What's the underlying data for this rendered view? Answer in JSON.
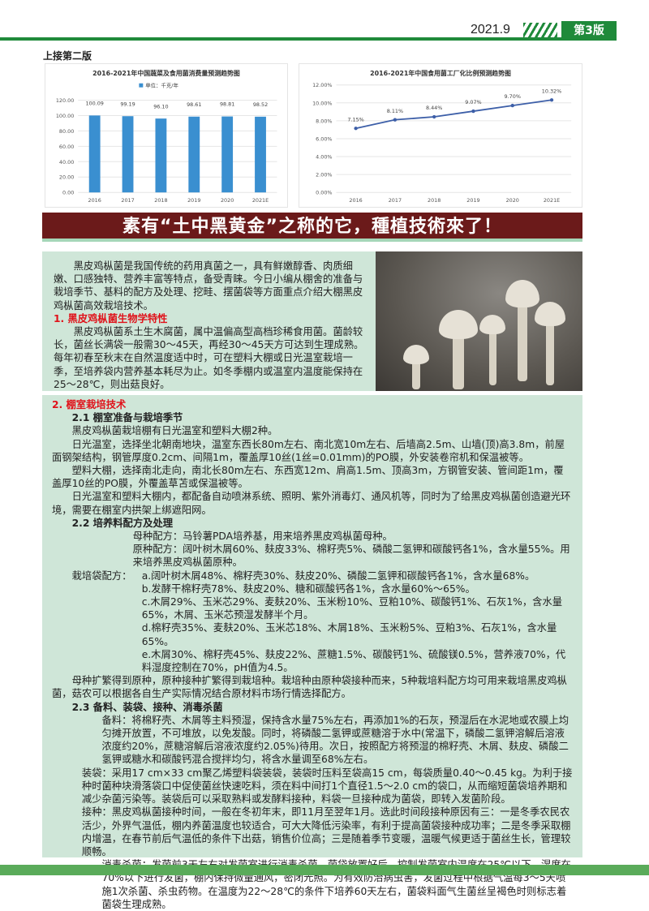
{
  "header": {
    "date": "2021.9",
    "edition": "第3版",
    "continued": "上接第二版"
  },
  "chart_data": [
    {
      "type": "bar",
      "title": "2016-2021年中国蔬菜及食用菌消费量预测趋势图",
      "legend": "单位：千克/年",
      "categories": [
        "2016",
        "2017",
        "2018",
        "2019",
        "2020",
        "2021E"
      ],
      "values": [
        100.09,
        99.19,
        96.1,
        98.61,
        98.81,
        98.52
      ],
      "labels": [
        "100.09",
        "99.19",
        "96.10",
        "98.61",
        "98.81",
        "98.52"
      ],
      "ylim": [
        0,
        120
      ],
      "yticks": [
        "0.00",
        "20.00",
        "40.00",
        "60.00",
        "80.00",
        "100.00",
        "120.00"
      ],
      "color": "#3a8fd0",
      "grid": true
    },
    {
      "type": "line",
      "title": "2016-2021年中国食用菌工厂化比例预测趋势图",
      "categories": [
        "2016",
        "2017",
        "2018",
        "2019",
        "2020",
        "2021E"
      ],
      "values": [
        7.15,
        8.11,
        8.44,
        9.07,
        9.7,
        10.32
      ],
      "labels": [
        "7.15%",
        "8.11%",
        "8.44%",
        "9.07%",
        "9.70%",
        "10.32%"
      ],
      "ylim": [
        0,
        12
      ],
      "yticks": [
        "0.00%",
        "2.00%",
        "4.00%",
        "6.00%",
        "8.00%",
        "10.00%",
        "12.00%"
      ],
      "color": "#3d5fa8",
      "grid": true
    }
  ],
  "banner": "素有“土中黑黄金”之称的它，種植技術來了！",
  "intro": {
    "p1": "黑皮鸡枞菌是我国传统的药用真菌之一，具有鲜嫩醇香、肉质细嫩、口感独特、营养丰富等特点，备受青睐。今日小编从棚舍的准备与栽培季节、基料的配方及处理、挖畦、摆菌袋等方面重点介绍大棚黑皮鸡枞菌高效栽培技术。",
    "h1": "1. 黑皮鸡枞菌生物学特性",
    "p2": "黑皮鸡枞菌系土生木腐菌，属中温偏高型高档珍稀食用菌。菌龄较长，菌丝长满袋一般需30～45天，再经30～45天方可达到生理成熟。每年初春至秋末在自然温度适中时，可在塑料大棚或日光温室栽培一季，至培养袋内营养基本耗尽为止。如冬季棚内或温室内温度能保持在25～28℃，则出菇良好。"
  },
  "main": {
    "h2": "2. 棚室栽培技术",
    "s21": "2.1 棚室准备与栽培季节",
    "p1": "黑皮鸡枞菌栽培棚有日光温室和塑料大棚2种。",
    "p2": "日光温室，选择坐北朝南地块，温室东西长80m左右、南北宽10m左右、后墙高2.5m、山墙(顶)高3.8m，前屋面钢架结构，钢管厚度0.2cm、间隔1m，覆盖厚10丝(1丝=0.01mm)的PO膜，外安装卷帘机和保温被等。",
    "p3": "塑料大棚，选择南北走向，南北长80m左右、东西宽12m、肩高1.5m、顶高3m，方钢管安装、管间距1m，覆盖厚10丝的PO膜，外覆盖草苫或保温被等。",
    "p4": "日光温室和塑料大棚内，都配备自动喷淋系统、照明、紫外消毒灯、通风机等，同时为了给黑皮鸡枞菌创造避光环境，需要在棚室内拱架上绑遮阳网。",
    "s22": "2.2 培养料配方及处理",
    "mother": "母种配方：马铃薯PDA培养基，用来培养黑皮鸡枞菌母种。",
    "origin": "原种配方：阔叶树木屑60%、麸皮33%、棉籽壳5%、磷酸二氢钾和碳酸钙各1%，含水量55%。用来培养黑皮鸡枞菌原种。",
    "bag_label": "栽培袋配方：",
    "bag": [
      "a.阔叶树木屑48%、棉籽壳30%、麸皮20%、磷酸二氢钾和碳酸钙各1%，含水量68%。",
      "b.发酵干棉籽壳78%、麸皮20%、糖和碳酸钙各1%，含水量60%～65%。",
      "c.木屑29%、玉米芯29%、麦麸20%、玉米粉10%、豆粕10%、碳酸钙1%、石灰1%，含水量65%，木屑、玉米芯预湿发酵半个月。",
      "d.棉籽壳35%、麦麸20%、玉米芯18%、木屑18%、玉米粉5%、豆粕3%、石灰1%，含水量65%。",
      "e.木屑30%、棉籽壳45%、麸皮22%、蔗糖1.5%、碳酸钙1%、硫酸镁0.5%，营养液70%，代料湿度控制在70%，pH值为4.5。"
    ],
    "p5": "母种扩繁得到原种，原种接种扩繁得到栽培种。栽培种由原种袋接种而来，5种栽培料配方均可用来栽培黑皮鸡枞菌，菇农可以根据各自生产实际情况结合原材料市场行情选择配方。",
    "s23": "2.3 备料、装袋、接种、消毒杀菌",
    "prep": "备料：将棉籽壳、木屑等主料预湿，保持含水量75%左右，再添加1%的石灰，预湿后在水泥地或农膜上均匀摊开放置，不可堆放，以免发酸。同时，将磷酸二氢钾或蔗糖溶于水中(常温下，磷酸二氢钾溶解后溶液浓度约20%，蔗糖溶解后溶液浓度约2.05%)待用。次日，按照配方将预湿的棉籽壳、木屑、麸皮、磷酸二氢钾或糖水和碳酸钙混合搅拌均匀，将含水量调至68%左右。",
    "bagging": "装袋：采用17 cm×33 cm聚乙烯塑料袋装袋，装袋时压料至袋高15 cm，每袋质量0.40～0.45 kg。为利于接种时菌种块滑落袋口中促使菌丝快速吃料，须在料中间打1个直径1.5～2.0 cm的袋口，从而缩短菌袋培养期和减少杂菌污染等。装袋后可以采取熟料或发酵料接种，料袋一旦接种成为菌袋，即转入发菌阶段。",
    "inoc": "接种：黑皮鸡枞菌接种时间，一般在冬初年末，即11月至翌年1月。选此时间段接种原因有三：一是冬季农民农活少，外界气温低，棚内养菌温度也较适合，可大大降低污染率，有利于提高菌袋接种成功率；二是冬季采取棚内增温，在春节前后气温低的条件下出菇，销售价位高；三是随着季节变暖，温暖气候更适于菌丝生长，管理较顺畅。",
    "steril": "消毒杀菌：发菌前3天左右对发菌室进行消毒杀菌。菌袋放置好后，控制发菌室内温度在25℃以下、湿度在70%以下进行发菌，棚内保持微量通风，密闭光照。为有效防治病虫害，发菌过程中根据气温每3～5天喷施1次杀菌、杀虫药物。在温度为22～28℃的条件下培养60天左右，菌袋料面气生菌丝呈褐色时则标志着菌袋生理成熟。"
  },
  "colors": {
    "green": "#1f8a3a",
    "banner": "#6b1a1a",
    "box": "#cfe6d8",
    "heading": "#e0121a"
  }
}
